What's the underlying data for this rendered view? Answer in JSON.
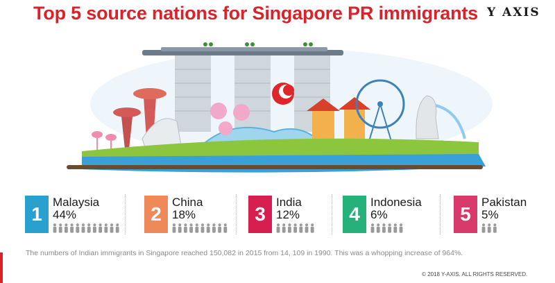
{
  "title": "Top 5 source nations for Singapore PR immigrants",
  "logo": {
    "text": "Y AXIS",
    "sub": ""
  },
  "chart_data": {
    "type": "pictograph",
    "title": "Top 5 source nations for Singapore PR immigrants",
    "categories": [
      "Malaysia",
      "China",
      "India",
      "Indonesia",
      "Pakistan"
    ],
    "values": [
      44,
      18,
      12,
      6,
      5
    ],
    "unit": "%",
    "items": [
      {
        "rank": "1",
        "country": "Malaysia",
        "value": 44,
        "label": "44%",
        "icons": 12,
        "color": "#2aa0cf"
      },
      {
        "rank": "2",
        "country": "China",
        "value": 18,
        "label": "18%",
        "icons": 10,
        "color": "#ee8a5a"
      },
      {
        "rank": "3",
        "country": "India",
        "value": 12,
        "label": "12%",
        "icons": 7,
        "color": "#d61f4f"
      },
      {
        "rank": "4",
        "country": "Indonesia",
        "value": 6,
        "label": "6%",
        "icons": 6,
        "color": "#25b179"
      },
      {
        "rank": "5",
        "country": "Pakistan",
        "value": 5,
        "label": "5%",
        "icons": 3,
        "color": "#d83a6c"
      }
    ]
  },
  "footnote": "The numbers of Indian immigrants in Singapore reached 150,082 in 2015 from 14, 109 in 1990. This was a whopping increase of 964%.",
  "copyright": "© 2018 Y-AXIS. ALL RIGHTS RESERVED.",
  "colors": {
    "title": "#d8232a",
    "icon_gray": "#9a9a9a",
    "water": "#3aa0d8",
    "grass": "#8cc63f"
  }
}
